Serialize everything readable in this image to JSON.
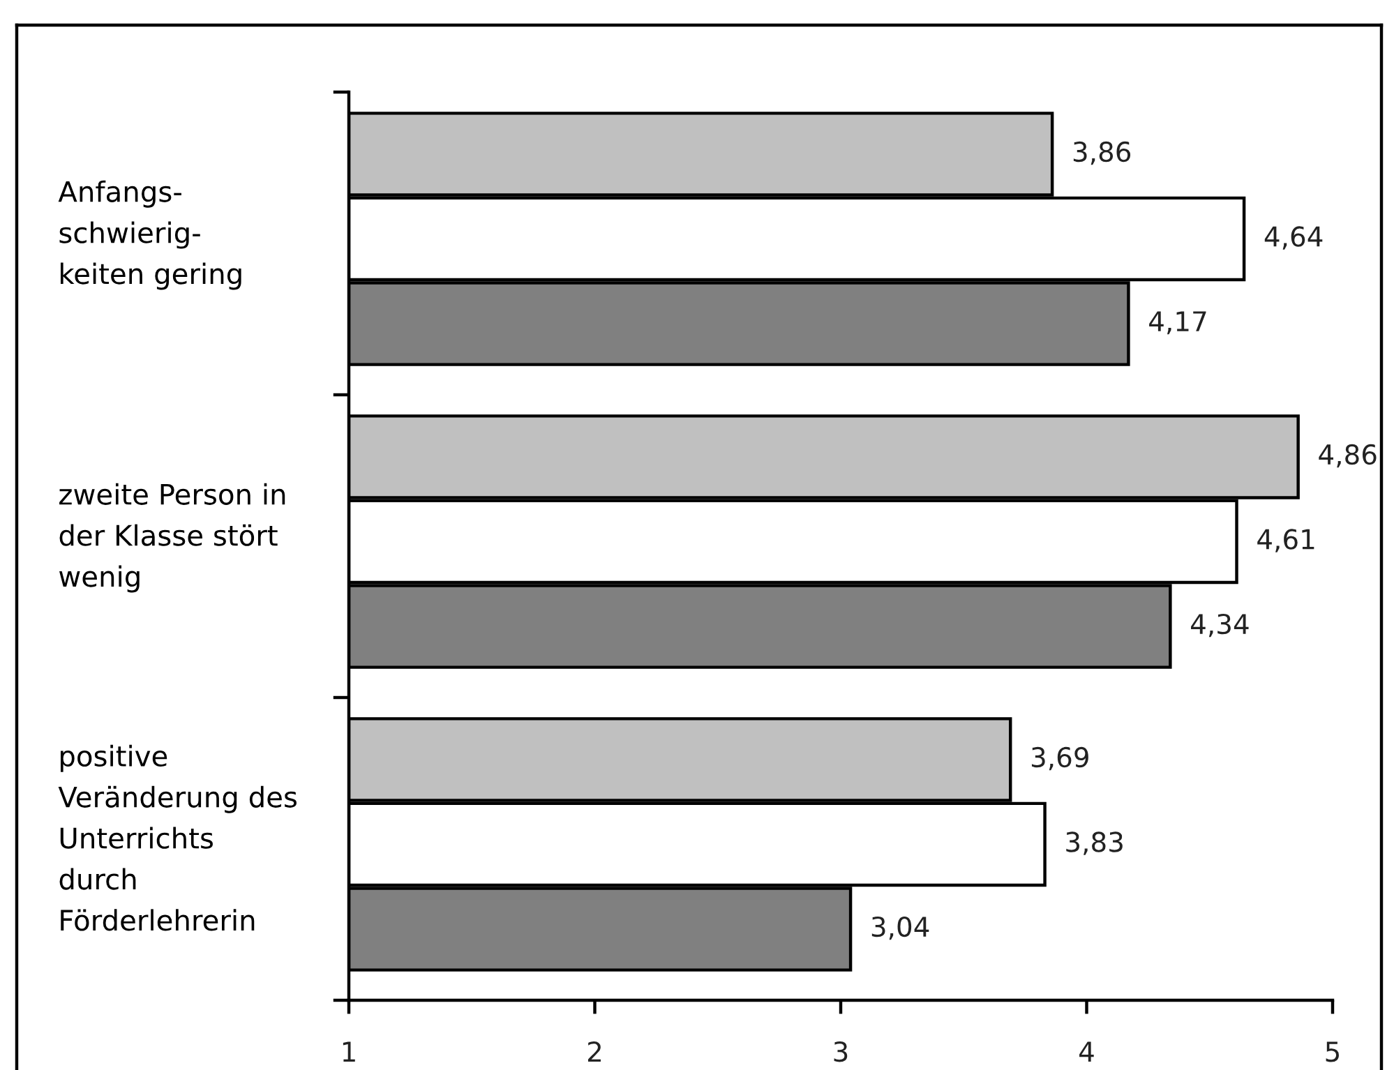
{
  "chart_data": {
    "type": "bar",
    "orientation": "horizontal",
    "categories": [
      "Anfangs-\nschwierig-\nkeiten gering",
      "zweite Person in\nder Klasse stört\nwenig",
      "positive\nVeränderung des\nUnterrichts\ndurch\nFörderlehrerin"
    ],
    "series": [
      {
        "color": "#c0c0c0",
        "values": [
          3.86,
          4.86,
          3.69
        ],
        "value_labels": [
          "3,86",
          "4,86",
          "3,69"
        ]
      },
      {
        "color": "#ffffff",
        "values": [
          4.64,
          4.61,
          3.83
        ],
        "value_labels": [
          "4,64",
          "4,61",
          "3,83"
        ]
      },
      {
        "color": "#808080",
        "values": [
          4.17,
          4.34,
          3.04
        ],
        "value_labels": [
          "4,17",
          "4,34",
          "3,04"
        ]
      }
    ],
    "xlim": [
      1,
      5
    ],
    "xticks": [
      1,
      2,
      3,
      4,
      5
    ]
  }
}
